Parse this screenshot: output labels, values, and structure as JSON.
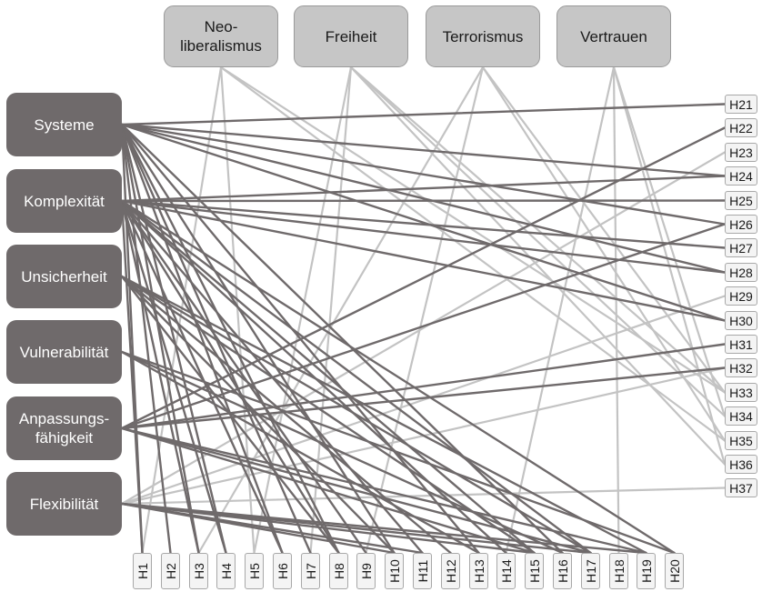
{
  "left_concepts": [
    {
      "id": "systeme",
      "label": "Systeme"
    },
    {
      "id": "komplexitaet",
      "label": "Komplexität"
    },
    {
      "id": "unsicherheit",
      "label": "Unsicherheit"
    },
    {
      "id": "vulnerabilitaet",
      "label": "Vulnerabilität"
    },
    {
      "id": "anpassung",
      "label": "Anpassungs-\nfähigkeit"
    },
    {
      "id": "flexibilitaet",
      "label": "Flexibilität"
    }
  ],
  "top_concepts": [
    {
      "id": "neoliberalismus",
      "label": "Neo-\nliberalismus"
    },
    {
      "id": "freiheit",
      "label": "Freiheit"
    },
    {
      "id": "terrorismus",
      "label": "Terrorismus"
    },
    {
      "id": "vertrauen",
      "label": "Vertrauen"
    }
  ],
  "bottom_nodes": [
    "H1",
    "H2",
    "H3",
    "H4",
    "H5",
    "H6",
    "H7",
    "H8",
    "H9",
    "H10",
    "H11",
    "H12",
    "H13",
    "H14",
    "H15",
    "H16",
    "H17",
    "H18",
    "H19",
    "H20"
  ],
  "right_nodes": [
    "H21",
    "H22",
    "H23",
    "H24",
    "H25",
    "H26",
    "H27",
    "H28",
    "H29",
    "H30",
    "H31",
    "H32",
    "H33",
    "H34",
    "H35",
    "H36",
    "H37"
  ],
  "edges_dark": [
    [
      "systeme",
      "H1"
    ],
    [
      "systeme",
      "H2"
    ],
    [
      "systeme",
      "H3"
    ],
    [
      "systeme",
      "H4"
    ],
    [
      "systeme",
      "H6"
    ],
    [
      "systeme",
      "H7"
    ],
    [
      "systeme",
      "H8"
    ],
    [
      "systeme",
      "H10"
    ],
    [
      "systeme",
      "H13"
    ],
    [
      "systeme",
      "H16"
    ],
    [
      "systeme",
      "H21"
    ],
    [
      "systeme",
      "H24"
    ],
    [
      "systeme",
      "H26"
    ],
    [
      "systeme",
      "H28"
    ],
    [
      "systeme",
      "H30"
    ],
    [
      "komplexitaet",
      "H1"
    ],
    [
      "komplexitaet",
      "H3"
    ],
    [
      "komplexitaet",
      "H4"
    ],
    [
      "komplexitaet",
      "H6"
    ],
    [
      "komplexitaet",
      "H8"
    ],
    [
      "komplexitaet",
      "H9"
    ],
    [
      "komplexitaet",
      "H11"
    ],
    [
      "komplexitaet",
      "H14"
    ],
    [
      "komplexitaet",
      "H15"
    ],
    [
      "komplexitaet",
      "H17"
    ],
    [
      "komplexitaet",
      "H20"
    ],
    [
      "komplexitaet",
      "H24"
    ],
    [
      "komplexitaet",
      "H25"
    ],
    [
      "komplexitaet",
      "H27"
    ],
    [
      "komplexitaet",
      "H28"
    ],
    [
      "komplexitaet",
      "H30"
    ],
    [
      "unsicherheit",
      "H8"
    ],
    [
      "unsicherheit",
      "H10"
    ],
    [
      "unsicherheit",
      "H12"
    ],
    [
      "unsicherheit",
      "H15"
    ],
    [
      "unsicherheit",
      "H17"
    ],
    [
      "unsicherheit",
      "H19"
    ],
    [
      "vulnerabilitaet",
      "H13"
    ],
    [
      "vulnerabilitaet",
      "H16"
    ],
    [
      "vulnerabilitaet",
      "H20"
    ],
    [
      "anpassung",
      "H15"
    ],
    [
      "anpassung",
      "H17"
    ],
    [
      "anpassung",
      "H19"
    ],
    [
      "anpassung",
      "H22"
    ],
    [
      "anpassung",
      "H26"
    ],
    [
      "anpassung",
      "H31"
    ],
    [
      "anpassung",
      "H32"
    ],
    [
      "flexibilitaet",
      "H10"
    ],
    [
      "flexibilitaet",
      "H11"
    ],
    [
      "flexibilitaet",
      "H15"
    ],
    [
      "flexibilitaet",
      "H17"
    ],
    [
      "flexibilitaet",
      "H19"
    ]
  ],
  "edges_light": [
    [
      "neoliberalismus",
      "H1"
    ],
    [
      "neoliberalismus",
      "H5"
    ],
    [
      "neoliberalismus",
      "H33"
    ],
    [
      "neoliberalismus",
      "H35"
    ],
    [
      "freiheit",
      "H5"
    ],
    [
      "freiheit",
      "H7"
    ],
    [
      "freiheit",
      "H33"
    ],
    [
      "freiheit",
      "H34"
    ],
    [
      "freiheit",
      "H36"
    ],
    [
      "terrorismus",
      "H3"
    ],
    [
      "terrorismus",
      "H9"
    ],
    [
      "terrorismus",
      "H33"
    ],
    [
      "terrorismus",
      "H35"
    ],
    [
      "vertrauen",
      "H14"
    ],
    [
      "vertrauen",
      "H18"
    ],
    [
      "vertrauen",
      "H34"
    ],
    [
      "vertrauen",
      "H36"
    ],
    [
      "flexibilitaet",
      "H23"
    ],
    [
      "flexibilitaet",
      "H29"
    ],
    [
      "flexibilitaet",
      "H32"
    ],
    [
      "flexibilitaet",
      "H37"
    ]
  ],
  "colors": {
    "dark_edge": "#6f6a6b",
    "light_edge": "#c3c3c3"
  }
}
